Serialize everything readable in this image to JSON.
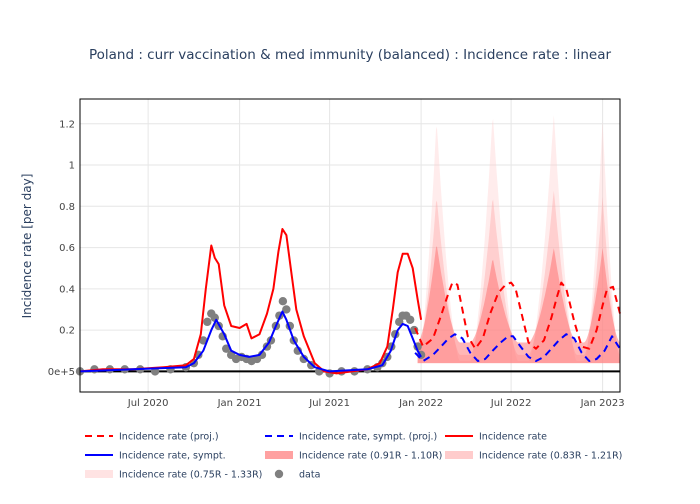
{
  "chart_data": {
    "type": "line",
    "title": "Poland : curr vaccination & med immunity (balanced) : Incidence rate : linear",
    "xlabel": "",
    "ylabel": "Incidence rate [per day]",
    "x_range": [
      "2020-02-15",
      "2023-02-05"
    ],
    "y_range": [
      -0.1,
      1.32
    ],
    "y_ticks": [
      {
        "v": 0,
        "label": "0e+5"
      },
      {
        "v": 0.2,
        "label": "0.2"
      },
      {
        "v": 0.4,
        "label": "0.4"
      },
      {
        "v": 0.6,
        "label": "0.6"
      },
      {
        "v": 0.8,
        "label": "0.8"
      },
      {
        "v": 1.0,
        "label": "1"
      },
      {
        "v": 1.2,
        "label": "1.2"
      }
    ],
    "x_ticks": [
      {
        "v": "2020-07-01",
        "label": "Jul 2020"
      },
      {
        "v": "2021-01-01",
        "label": "Jan 2021"
      },
      {
        "v": "2021-07-01",
        "label": "Jul 2021"
      },
      {
        "v": "2022-01-01",
        "label": "Jan 2022"
      },
      {
        "v": "2022-07-01",
        "label": "Jul 2022"
      },
      {
        "v": "2023-01-01",
        "label": "Jan 2023"
      }
    ],
    "grid": true,
    "legend_position": "bottom",
    "series": [
      {
        "name": "Incidence rate (proj.)",
        "color": "#ff0000",
        "style": "dash",
        "x": [
          "2021-12-20",
          "2022-01-05",
          "2022-01-25",
          "2022-02-10",
          "2022-02-25",
          "2022-03-05",
          "2022-03-15",
          "2022-03-25",
          "2022-04-05",
          "2022-04-20",
          "2022-05-05",
          "2022-05-20",
          "2022-06-05",
          "2022-06-20",
          "2022-07-01",
          "2022-07-10",
          "2022-07-20",
          "2022-08-05",
          "2022-08-20",
          "2022-09-05",
          "2022-09-20",
          "2022-10-01",
          "2022-10-10",
          "2022-10-20",
          "2022-11-05",
          "2022-11-20",
          "2022-12-05",
          "2022-12-20",
          "2023-01-01",
          "2023-01-10",
          "2023-01-22",
          "2023-02-05"
        ],
        "y": [
          0.21,
          0.12,
          0.16,
          0.27,
          0.38,
          0.43,
          0.42,
          0.3,
          0.17,
          0.11,
          0.16,
          0.28,
          0.38,
          0.42,
          0.43,
          0.4,
          0.3,
          0.14,
          0.11,
          0.15,
          0.26,
          0.36,
          0.43,
          0.4,
          0.24,
          0.12,
          0.11,
          0.2,
          0.32,
          0.4,
          0.41,
          0.28
        ]
      },
      {
        "name": "Incidence rate, sympt. (proj.)",
        "color": "#0000ff",
        "style": "dash",
        "x": [
          "2021-12-20",
          "2022-01-05",
          "2022-01-25",
          "2022-02-10",
          "2022-02-25",
          "2022-03-10",
          "2022-03-25",
          "2022-04-10",
          "2022-04-25",
          "2022-05-10",
          "2022-05-25",
          "2022-06-10",
          "2022-06-25",
          "2022-07-05",
          "2022-07-20",
          "2022-08-05",
          "2022-08-20",
          "2022-09-05",
          "2022-09-20",
          "2022-10-05",
          "2022-10-20",
          "2022-11-05",
          "2022-11-20",
          "2022-12-05",
          "2022-12-20",
          "2023-01-05",
          "2023-01-20",
          "2023-02-05"
        ],
        "y": [
          0.09,
          0.05,
          0.08,
          0.12,
          0.16,
          0.18,
          0.16,
          0.09,
          0.05,
          0.06,
          0.1,
          0.14,
          0.17,
          0.17,
          0.12,
          0.07,
          0.05,
          0.07,
          0.11,
          0.15,
          0.18,
          0.16,
          0.09,
          0.05,
          0.06,
          0.1,
          0.17,
          0.11
        ]
      },
      {
        "name": "Incidence rate",
        "color": "#ff0000",
        "style": "solid",
        "x": [
          "2020-02-15",
          "2020-04-01",
          "2020-06-01",
          "2020-08-01",
          "2020-09-15",
          "2020-10-01",
          "2020-10-15",
          "2020-10-25",
          "2020-11-05",
          "2020-11-12",
          "2020-11-20",
          "2020-12-01",
          "2020-12-15",
          "2021-01-01",
          "2021-01-15",
          "2021-01-25",
          "2021-02-10",
          "2021-02-25",
          "2021-03-10",
          "2021-03-20",
          "2021-03-28",
          "2021-04-05",
          "2021-04-15",
          "2021-04-25",
          "2021-05-10",
          "2021-06-01",
          "2021-06-20",
          "2021-07-15",
          "2021-08-15",
          "2021-09-15",
          "2021-10-10",
          "2021-10-25",
          "2021-11-05",
          "2021-11-15",
          "2021-11-25",
          "2021-12-05",
          "2021-12-15",
          "2021-12-25",
          "2022-01-01"
        ],
        "y": [
          0.0,
          0.01,
          0.01,
          0.02,
          0.03,
          0.06,
          0.18,
          0.4,
          0.61,
          0.55,
          0.52,
          0.32,
          0.22,
          0.21,
          0.23,
          0.16,
          0.18,
          0.28,
          0.4,
          0.58,
          0.69,
          0.66,
          0.48,
          0.3,
          0.17,
          0.04,
          0.0,
          -0.01,
          0.0,
          0.01,
          0.04,
          0.12,
          0.3,
          0.48,
          0.57,
          0.57,
          0.5,
          0.35,
          0.25
        ]
      },
      {
        "name": "Incidence rate, sympt.",
        "color": "#0000ff",
        "style": "solid",
        "x": [
          "2020-02-15",
          "2020-06-01",
          "2020-09-15",
          "2020-10-01",
          "2020-10-20",
          "2020-11-05",
          "2020-11-15",
          "2020-12-01",
          "2020-12-15",
          "2021-01-01",
          "2021-01-20",
          "2021-02-10",
          "2021-03-01",
          "2021-03-15",
          "2021-03-28",
          "2021-04-05",
          "2021-04-20",
          "2021-05-10",
          "2021-06-01",
          "2021-07-01",
          "2021-09-15",
          "2021-10-15",
          "2021-11-01",
          "2021-11-15",
          "2021-11-25",
          "2021-12-05",
          "2021-12-15",
          "2021-12-25",
          "2022-01-01"
        ],
        "y": [
          0.0,
          0.01,
          0.02,
          0.04,
          0.1,
          0.2,
          0.25,
          0.18,
          0.1,
          0.08,
          0.07,
          0.08,
          0.14,
          0.22,
          0.29,
          0.25,
          0.15,
          0.07,
          0.02,
          0.0,
          0.01,
          0.03,
          0.1,
          0.2,
          0.23,
          0.22,
          0.16,
          0.1,
          0.07
        ]
      }
    ],
    "bands": [
      {
        "name": "Incidence rate (0.91R - 1.10R)",
        "color": "#ff6e6e",
        "opacity": 0.5
      },
      {
        "name": "Incidence rate (0.83R - 1.21R)",
        "color": "#ff9a9a",
        "opacity": 0.35
      },
      {
        "name": "Incidence rate (0.75R - 1.33R)",
        "color": "#ffc8c8",
        "opacity": 0.35
      }
    ],
    "band_waves": [
      {
        "t0": "2021-12-25",
        "peak": "2022-02-01",
        "t1": "2022-03-20",
        "inner": 0.62,
        "mid": 0.85,
        "outer": 1.22
      },
      {
        "t0": "2022-04-10",
        "peak": "2022-05-25",
        "t1": "2022-07-15",
        "inner": 0.55,
        "mid": 0.85,
        "outer": 1.25
      },
      {
        "t0": "2022-08-05",
        "peak": "2022-09-25",
        "t1": "2022-11-10",
        "inner": 0.6,
        "mid": 0.88,
        "outer": 1.25
      },
      {
        "t0": "2022-11-25",
        "peak": "2023-01-01",
        "t1": "2023-02-05",
        "inner": 0.6,
        "mid": 0.85,
        "outer": 1.22
      }
    ],
    "band_floor": {
      "inner": 0.14,
      "mid": 0.08,
      "outer": 0.05
    },
    "observed": {
      "name": "data",
      "color": "#808080",
      "x": [
        "2020-02-15",
        "2020-03-15",
        "2020-04-15",
        "2020-05-15",
        "2020-06-15",
        "2020-07-15",
        "2020-08-15",
        "2020-09-15",
        "2020-10-01",
        "2020-10-10",
        "2020-10-20",
        "2020-10-28",
        "2020-11-05",
        "2020-11-12",
        "2020-11-20",
        "2020-11-28",
        "2020-12-05",
        "2020-12-15",
        "2020-12-25",
        "2021-01-05",
        "2021-01-15",
        "2021-01-25",
        "2021-02-05",
        "2021-02-15",
        "2021-02-25",
        "2021-03-05",
        "2021-03-15",
        "2021-03-22",
        "2021-03-29",
        "2021-04-05",
        "2021-04-12",
        "2021-04-20",
        "2021-04-28",
        "2021-05-10",
        "2021-05-25",
        "2021-06-10",
        "2021-07-01",
        "2021-07-25",
        "2021-08-20",
        "2021-09-15",
        "2021-10-05",
        "2021-10-15",
        "2021-10-25",
        "2021-11-02",
        "2021-11-10",
        "2021-11-18",
        "2021-11-25",
        "2021-12-02",
        "2021-12-10",
        "2021-12-18",
        "2021-12-25",
        "2022-01-01"
      ],
      "y": [
        0.0,
        0.01,
        0.01,
        0.01,
        0.01,
        0.0,
        0.01,
        0.02,
        0.04,
        0.08,
        0.15,
        0.24,
        0.28,
        0.26,
        0.22,
        0.17,
        0.11,
        0.08,
        0.06,
        0.07,
        0.06,
        0.05,
        0.06,
        0.08,
        0.12,
        0.15,
        0.22,
        0.27,
        0.34,
        0.3,
        0.22,
        0.15,
        0.1,
        0.06,
        0.03,
        0.0,
        -0.01,
        0.0,
        0.0,
        0.01,
        0.02,
        0.04,
        0.07,
        0.12,
        0.18,
        0.24,
        0.27,
        0.27,
        0.25,
        0.2,
        0.12,
        0.08
      ]
    }
  }
}
